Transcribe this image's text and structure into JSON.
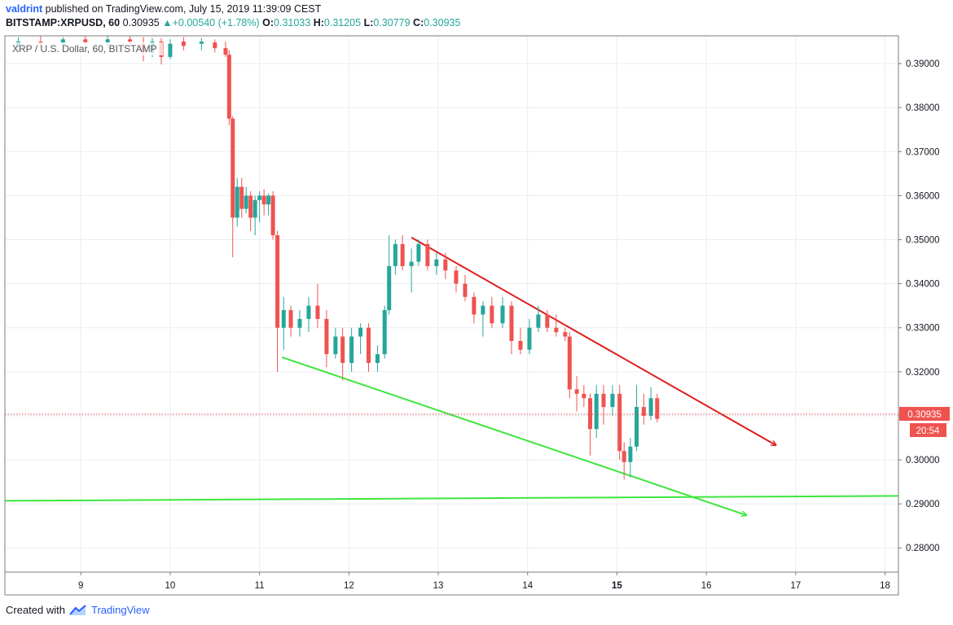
{
  "header": {
    "author": "valdrint",
    "published_text": "published on TradingView.com, July 15, 2019 11:39:09 CEST"
  },
  "symbol_bar": {
    "symbol": "BITSTAMP:XRPUSD, 60",
    "last": "0.30935",
    "change_arrow": "triangle-up-icon",
    "change": "+0.00540 (+1.78%)",
    "o_label": "O:",
    "o": "0.31033",
    "h_label": "H:",
    "h": "0.31205",
    "l_label": "L:",
    "l": "0.30779",
    "c_label": "C:",
    "c": "0.30935"
  },
  "chart_legend": "XRP / U.S. Dollar, 60, BITSTAMP",
  "price_label": "0.30935",
  "countdown_label": "20:54",
  "footer": {
    "created_with": "Created with",
    "brand": "TradingView",
    "logo": "tradingview-logo-icon"
  },
  "colors": {
    "up": "#26a69a",
    "down": "#ef5350",
    "red_line": "#e01e1e",
    "green_line": "#3de63d",
    "price_line": "#e54b4b"
  },
  "chart_data": {
    "type": "candlestick",
    "title": "XRP / U.S. Dollar, 60, BITSTAMP",
    "x_ticks": [
      "9",
      "10",
      "11",
      "12",
      "13",
      "14",
      "15",
      "16",
      "17",
      "18"
    ],
    "x_range": [
      8.15,
      18.15
    ],
    "y_ticks": [
      "0.39000",
      "0.38000",
      "0.37000",
      "0.36000",
      "0.35000",
      "0.34000",
      "0.33000",
      "0.32000",
      "0.31000",
      "0.30000",
      "0.29000",
      "0.28000"
    ],
    "ylim": [
      0.2745,
      0.3963
    ],
    "grid": true,
    "last_price": 0.30935,
    "ohlc_approx": [
      {
        "x": 8.3,
        "o": 0.394,
        "h": 0.396,
        "l": 0.3925,
        "c": 0.395
      },
      {
        "x": 8.55,
        "o": 0.395,
        "h": 0.3962,
        "l": 0.3935,
        "c": 0.3945
      },
      {
        "x": 8.8,
        "o": 0.3945,
        "h": 0.396,
        "l": 0.393,
        "c": 0.3955
      },
      {
        "x": 9.05,
        "o": 0.3955,
        "h": 0.3962,
        "l": 0.394,
        "c": 0.3948
      },
      {
        "x": 9.3,
        "o": 0.3948,
        "h": 0.3962,
        "l": 0.3935,
        "c": 0.3955
      },
      {
        "x": 9.55,
        "o": 0.3955,
        "h": 0.3962,
        "l": 0.394,
        "c": 0.395
      },
      {
        "x": 9.7,
        "o": 0.3945,
        "h": 0.396,
        "l": 0.3905,
        "c": 0.3925
      },
      {
        "x": 9.8,
        "o": 0.3925,
        "h": 0.3958,
        "l": 0.3915,
        "c": 0.395
      },
      {
        "x": 9.9,
        "o": 0.395,
        "h": 0.3958,
        "l": 0.3898,
        "c": 0.3915
      },
      {
        "x": 10.0,
        "o": 0.3915,
        "h": 0.3955,
        "l": 0.391,
        "c": 0.3945
      },
      {
        "x": 10.15,
        "o": 0.395,
        "h": 0.396,
        "l": 0.393,
        "c": 0.394
      },
      {
        "x": 10.35,
        "o": 0.3945,
        "h": 0.3958,
        "l": 0.393,
        "c": 0.395
      },
      {
        "x": 10.5,
        "o": 0.3948,
        "h": 0.3955,
        "l": 0.3925,
        "c": 0.3935
      },
      {
        "x": 10.62,
        "o": 0.3935,
        "h": 0.395,
        "l": 0.3915,
        "c": 0.392
      },
      {
        "x": 10.66,
        "o": 0.392,
        "h": 0.393,
        "l": 0.376,
        "c": 0.3775
      },
      {
        "x": 10.7,
        "o": 0.3775,
        "h": 0.378,
        "l": 0.346,
        "c": 0.355
      },
      {
        "x": 10.75,
        "o": 0.355,
        "h": 0.364,
        "l": 0.353,
        "c": 0.362
      },
      {
        "x": 10.8,
        "o": 0.362,
        "h": 0.364,
        "l": 0.355,
        "c": 0.357
      },
      {
        "x": 10.85,
        "o": 0.357,
        "h": 0.362,
        "l": 0.356,
        "c": 0.36
      },
      {
        "x": 10.9,
        "o": 0.36,
        "h": 0.361,
        "l": 0.352,
        "c": 0.355
      },
      {
        "x": 10.95,
        "o": 0.355,
        "h": 0.36,
        "l": 0.351,
        "c": 0.359
      },
      {
        "x": 11.0,
        "o": 0.359,
        "h": 0.361,
        "l": 0.354,
        "c": 0.36
      },
      {
        "x": 11.05,
        "o": 0.36,
        "h": 0.3615,
        "l": 0.3555,
        "c": 0.358
      },
      {
        "x": 11.1,
        "o": 0.358,
        "h": 0.3605,
        "l": 0.3555,
        "c": 0.36
      },
      {
        "x": 11.15,
        "o": 0.36,
        "h": 0.361,
        "l": 0.35,
        "c": 0.351
      },
      {
        "x": 11.2,
        "o": 0.351,
        "h": 0.352,
        "l": 0.32,
        "c": 0.33
      },
      {
        "x": 11.27,
        "o": 0.33,
        "h": 0.337,
        "l": 0.325,
        "c": 0.334
      },
      {
        "x": 11.35,
        "o": 0.334,
        "h": 0.335,
        "l": 0.328,
        "c": 0.33
      },
      {
        "x": 11.45,
        "o": 0.33,
        "h": 0.334,
        "l": 0.328,
        "c": 0.332
      },
      {
        "x": 11.55,
        "o": 0.332,
        "h": 0.337,
        "l": 0.329,
        "c": 0.335
      },
      {
        "x": 11.65,
        "o": 0.335,
        "h": 0.34,
        "l": 0.33,
        "c": 0.332
      },
      {
        "x": 11.75,
        "o": 0.332,
        "h": 0.334,
        "l": 0.321,
        "c": 0.324
      },
      {
        "x": 11.85,
        "o": 0.324,
        "h": 0.33,
        "l": 0.323,
        "c": 0.328
      },
      {
        "x": 11.93,
        "o": 0.328,
        "h": 0.33,
        "l": 0.318,
        "c": 0.322
      },
      {
        "x": 12.03,
        "o": 0.322,
        "h": 0.33,
        "l": 0.32,
        "c": 0.328
      },
      {
        "x": 12.13,
        "o": 0.328,
        "h": 0.331,
        "l": 0.324,
        "c": 0.33
      },
      {
        "x": 12.22,
        "o": 0.33,
        "h": 0.331,
        "l": 0.32,
        "c": 0.322
      },
      {
        "x": 12.32,
        "o": 0.322,
        "h": 0.326,
        "l": 0.32,
        "c": 0.324
      },
      {
        "x": 12.4,
        "o": 0.324,
        "h": 0.335,
        "l": 0.323,
        "c": 0.334
      },
      {
        "x": 12.45,
        "o": 0.334,
        "h": 0.351,
        "l": 0.333,
        "c": 0.344
      },
      {
        "x": 12.52,
        "o": 0.344,
        "h": 0.35,
        "l": 0.342,
        "c": 0.349
      },
      {
        "x": 12.6,
        "o": 0.349,
        "h": 0.351,
        "l": 0.343,
        "c": 0.344
      },
      {
        "x": 12.7,
        "o": 0.344,
        "h": 0.348,
        "l": 0.338,
        "c": 0.345
      },
      {
        "x": 12.78,
        "o": 0.345,
        "h": 0.35,
        "l": 0.344,
        "c": 0.349
      },
      {
        "x": 12.88,
        "o": 0.349,
        "h": 0.35,
        "l": 0.343,
        "c": 0.344
      },
      {
        "x": 12.98,
        "o": 0.344,
        "h": 0.347,
        "l": 0.342,
        "c": 0.3455
      },
      {
        "x": 13.08,
        "o": 0.3455,
        "h": 0.347,
        "l": 0.341,
        "c": 0.343
      },
      {
        "x": 13.2,
        "o": 0.343,
        "h": 0.344,
        "l": 0.338,
        "c": 0.34
      },
      {
        "x": 13.3,
        "o": 0.34,
        "h": 0.342,
        "l": 0.336,
        "c": 0.337
      },
      {
        "x": 13.4,
        "o": 0.337,
        "h": 0.338,
        "l": 0.331,
        "c": 0.333
      },
      {
        "x": 13.5,
        "o": 0.333,
        "h": 0.336,
        "l": 0.328,
        "c": 0.335
      },
      {
        "x": 13.6,
        "o": 0.335,
        "h": 0.337,
        "l": 0.33,
        "c": 0.331
      },
      {
        "x": 13.72,
        "o": 0.331,
        "h": 0.337,
        "l": 0.33,
        "c": 0.335
      },
      {
        "x": 13.82,
        "o": 0.335,
        "h": 0.336,
        "l": 0.324,
        "c": 0.327
      },
      {
        "x": 13.92,
        "o": 0.327,
        "h": 0.33,
        "l": 0.324,
        "c": 0.325
      },
      {
        "x": 14.02,
        "o": 0.325,
        "h": 0.332,
        "l": 0.324,
        "c": 0.33
      },
      {
        "x": 14.12,
        "o": 0.33,
        "h": 0.335,
        "l": 0.329,
        "c": 0.333
      },
      {
        "x": 14.22,
        "o": 0.333,
        "h": 0.334,
        "l": 0.329,
        "c": 0.33
      },
      {
        "x": 14.32,
        "o": 0.33,
        "h": 0.333,
        "l": 0.328,
        "c": 0.329
      },
      {
        "x": 14.42,
        "o": 0.329,
        "h": 0.33,
        "l": 0.327,
        "c": 0.328
      },
      {
        "x": 14.47,
        "o": 0.328,
        "h": 0.329,
        "l": 0.314,
        "c": 0.316
      },
      {
        "x": 14.55,
        "o": 0.316,
        "h": 0.319,
        "l": 0.311,
        "c": 0.315
      },
      {
        "x": 14.63,
        "o": 0.315,
        "h": 0.317,
        "l": 0.312,
        "c": 0.314
      },
      {
        "x": 14.7,
        "o": 0.314,
        "h": 0.315,
        "l": 0.301,
        "c": 0.307
      },
      {
        "x": 14.77,
        "o": 0.307,
        "h": 0.317,
        "l": 0.305,
        "c": 0.315
      },
      {
        "x": 14.85,
        "o": 0.315,
        "h": 0.317,
        "l": 0.308,
        "c": 0.312
      },
      {
        "x": 14.95,
        "o": 0.312,
        "h": 0.317,
        "l": 0.31,
        "c": 0.315
      },
      {
        "x": 15.03,
        "o": 0.315,
        "h": 0.317,
        "l": 0.3,
        "c": 0.302
      },
      {
        "x": 15.08,
        "o": 0.302,
        "h": 0.304,
        "l": 0.2955,
        "c": 0.2995
      },
      {
        "x": 15.15,
        "o": 0.2995,
        "h": 0.305,
        "l": 0.296,
        "c": 0.303
      },
      {
        "x": 15.22,
        "o": 0.303,
        "h": 0.317,
        "l": 0.302,
        "c": 0.312
      },
      {
        "x": 15.3,
        "o": 0.312,
        "h": 0.315,
        "l": 0.308,
        "c": 0.31
      },
      {
        "x": 15.38,
        "o": 0.31,
        "h": 0.3165,
        "l": 0.309,
        "c": 0.314
      },
      {
        "x": 15.45,
        "o": 0.314,
        "h": 0.315,
        "l": 0.3085,
        "c": 0.3093
      }
    ],
    "trendlines": [
      {
        "name": "",
        "color": "#e01e1e",
        "from": [
          12.7,
          0.3505
        ],
        "to": [
          16.78,
          0.3033
        ],
        "arrow": true
      },
      {
        "name": "",
        "color": "#3de63d",
        "from": [
          11.25,
          0.3233
        ],
        "to": [
          16.45,
          0.2874
        ],
        "arrow": true
      },
      {
        "name": "",
        "color": "#3de63d",
        "from": [
          8.15,
          0.2907
        ],
        "to": [
          18.15,
          0.2918
        ],
        "arrow": false
      }
    ]
  }
}
